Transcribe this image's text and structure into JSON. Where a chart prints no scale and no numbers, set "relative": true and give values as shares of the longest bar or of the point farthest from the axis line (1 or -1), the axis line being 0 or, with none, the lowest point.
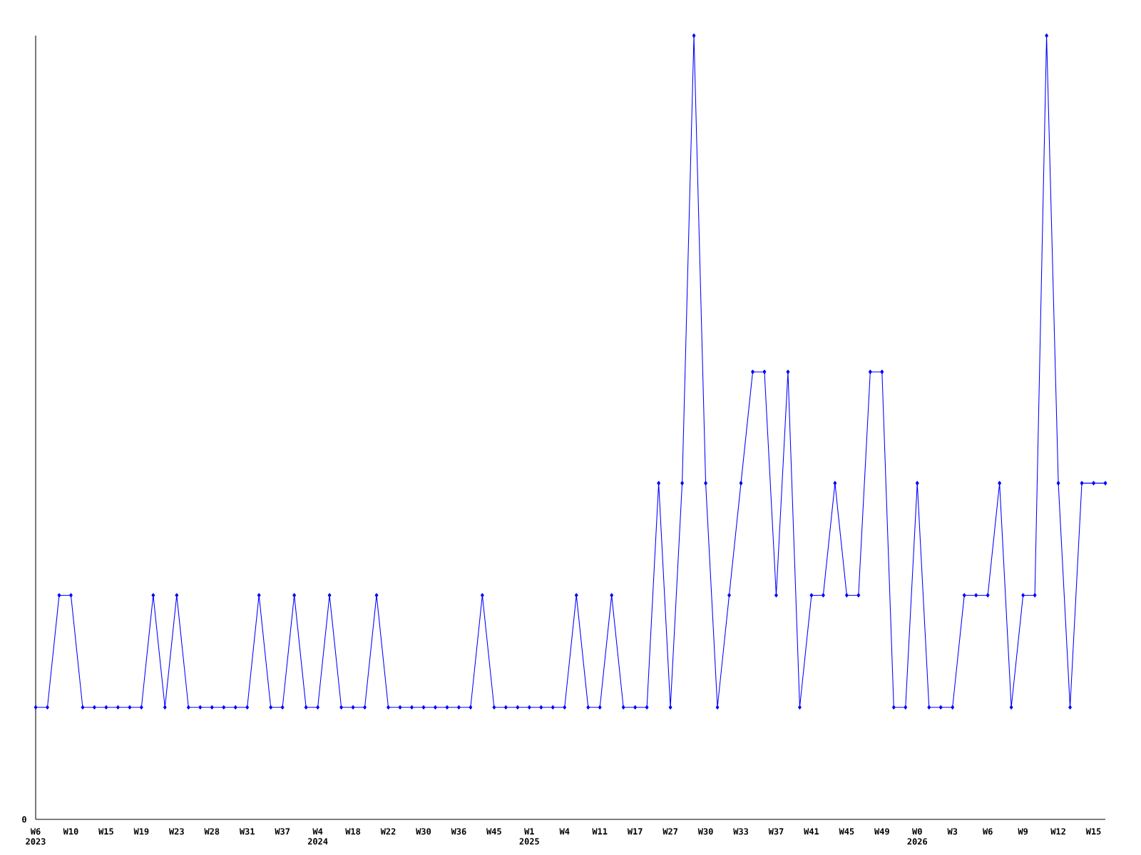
{
  "chart_data": {
    "type": "line",
    "relative": true,
    "color": "#0000ff",
    "marker": "diamond",
    "annotations": [
      "0"
    ],
    "categories": [
      "W6 2023",
      null,
      null,
      "W10",
      null,
      null,
      "W15",
      null,
      null,
      "W19",
      null,
      null,
      "W23",
      null,
      null,
      "W28",
      null,
      null,
      "W31",
      null,
      null,
      "W37",
      null,
      null,
      "W4 2024",
      null,
      null,
      "W18",
      null,
      null,
      "W22",
      null,
      null,
      "W30",
      null,
      null,
      "W36",
      null,
      null,
      "W45",
      null,
      null,
      "W1 2025",
      null,
      null,
      "W4",
      null,
      null,
      "W11",
      null,
      null,
      "W17",
      null,
      null,
      "W27",
      null,
      null,
      "W30",
      null,
      null,
      "W33",
      null,
      null,
      "W37",
      null,
      null,
      "W41",
      null,
      null,
      "W45",
      null,
      null,
      "W49",
      null,
      null,
      "W0 2026",
      null,
      null,
      "W3",
      null,
      null,
      "W6",
      null,
      null,
      "W9",
      null,
      null,
      "W12",
      null,
      null,
      "W15",
      null
    ],
    "values": [
      0.143,
      0.143,
      0.286,
      0.286,
      0.143,
      0.143,
      0.143,
      0.143,
      0.143,
      0.143,
      0.286,
      0.143,
      0.286,
      0.143,
      0.143,
      0.143,
      0.143,
      0.143,
      0.143,
      0.286,
      0.143,
      0.143,
      0.286,
      0.143,
      0.143,
      0.286,
      0.143,
      0.143,
      0.143,
      0.286,
      0.143,
      0.143,
      0.143,
      0.143,
      0.143,
      0.143,
      0.143,
      0.143,
      0.286,
      0.143,
      0.143,
      0.143,
      0.143,
      0.143,
      0.143,
      0.143,
      0.286,
      0.143,
      0.143,
      0.286,
      0.143,
      0.143,
      0.143,
      0.429,
      0.143,
      0.429,
      1,
      0.429,
      0.143,
      0.286,
      0.429,
      0.571,
      0.571,
      0.286,
      0.571,
      0.143,
      0.286,
      0.286,
      0.429,
      0.286,
      0.286,
      0.571,
      0.571,
      0.143,
      0.143,
      0.429,
      0.143,
      0.143,
      0.143,
      0.286,
      0.286,
      0.286,
      0.429,
      0.143,
      0.286,
      0.286,
      1,
      0.429,
      0.143,
      0.429,
      0.429,
      0.429
    ]
  }
}
